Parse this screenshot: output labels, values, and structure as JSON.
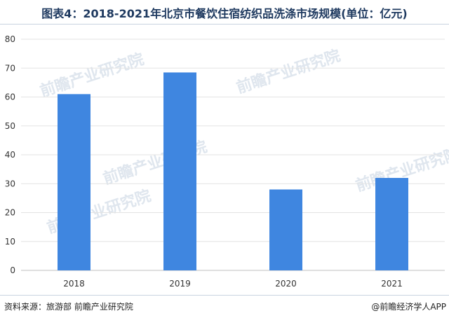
{
  "header": {
    "title": "图表4：2018-2021年北京市餐饮住宿纺织品洗涤市场规模(单位：亿元)"
  },
  "footer": {
    "source": "资料来源：旅游部 前瞻产业研究院",
    "credit": "@前瞻经济学人APP"
  },
  "watermark": {
    "text": "前瞻产业研究院"
  },
  "colors": {
    "bar": "#3f86e0",
    "grid": "#e3e3e3",
    "axis": "#bfbfbf"
  },
  "chart_data": {
    "type": "bar",
    "title": "图表4：2018-2021年北京市餐饮住宿纺织品洗涤市场规模(单位：亿元)",
    "categories": [
      "2018",
      "2019",
      "2020",
      "2021"
    ],
    "values": [
      61,
      68.5,
      28,
      32
    ],
    "ylim": [
      0,
      80
    ],
    "yticks": [
      0,
      10,
      20,
      30,
      40,
      50,
      60,
      70,
      80
    ],
    "xlabel": "",
    "ylabel": "",
    "grid": true,
    "legend": "none"
  }
}
